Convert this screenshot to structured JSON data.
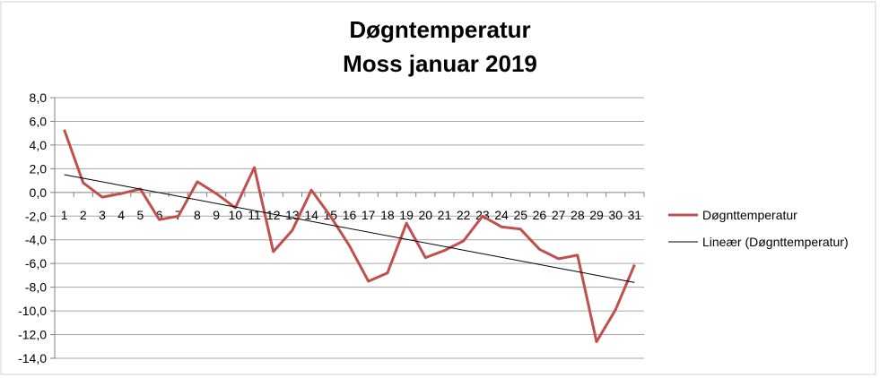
{
  "chart_data": {
    "type": "line",
    "title_lines": [
      "Døgntemperatur",
      "Moss januar 2019"
    ],
    "xlabel": "",
    "ylabel": "",
    "categories": [
      "1",
      "2",
      "3",
      "4",
      "5",
      "6",
      "7",
      "8",
      "9",
      "10",
      "11",
      "12",
      "13",
      "14",
      "15",
      "16",
      "17",
      "18",
      "19",
      "20",
      "21",
      "22",
      "23",
      "24",
      "25",
      "26",
      "27",
      "28",
      "29",
      "30",
      "31"
    ],
    "ylim": [
      -14,
      8
    ],
    "yticks": [
      "8,0",
      "6,0",
      "4,0",
      "2,0",
      "0,0",
      "-2,0",
      "-4,0",
      "-6,0",
      "-8,0",
      "-10,0",
      "-12,0",
      "-14,0"
    ],
    "ytick_values": [
      8,
      6,
      4,
      2,
      0,
      -2,
      -4,
      -6,
      -8,
      -10,
      -12,
      -14
    ],
    "grid": true,
    "legend_position": "right",
    "series": [
      {
        "name": "Døgnttemperatur",
        "color": "#c0504d",
        "values": [
          5.3,
          0.8,
          -0.4,
          -0.1,
          0.3,
          -2.3,
          -2.0,
          0.9,
          -0.1,
          -1.3,
          2.1,
          -5.0,
          -3.2,
          0.2,
          -2.0,
          -4.5,
          -7.5,
          -6.8,
          -2.6,
          -5.5,
          -4.9,
          -4.1,
          -2.0,
          -2.9,
          -3.1,
          -4.8,
          -5.6,
          -5.3,
          -12.6,
          -9.9,
          -6.1
        ]
      },
      {
        "name": "Lineær (Døgnttemperatur)",
        "color": "#000000",
        "trend_start": 1.5,
        "trend_end": -7.6
      }
    ]
  }
}
